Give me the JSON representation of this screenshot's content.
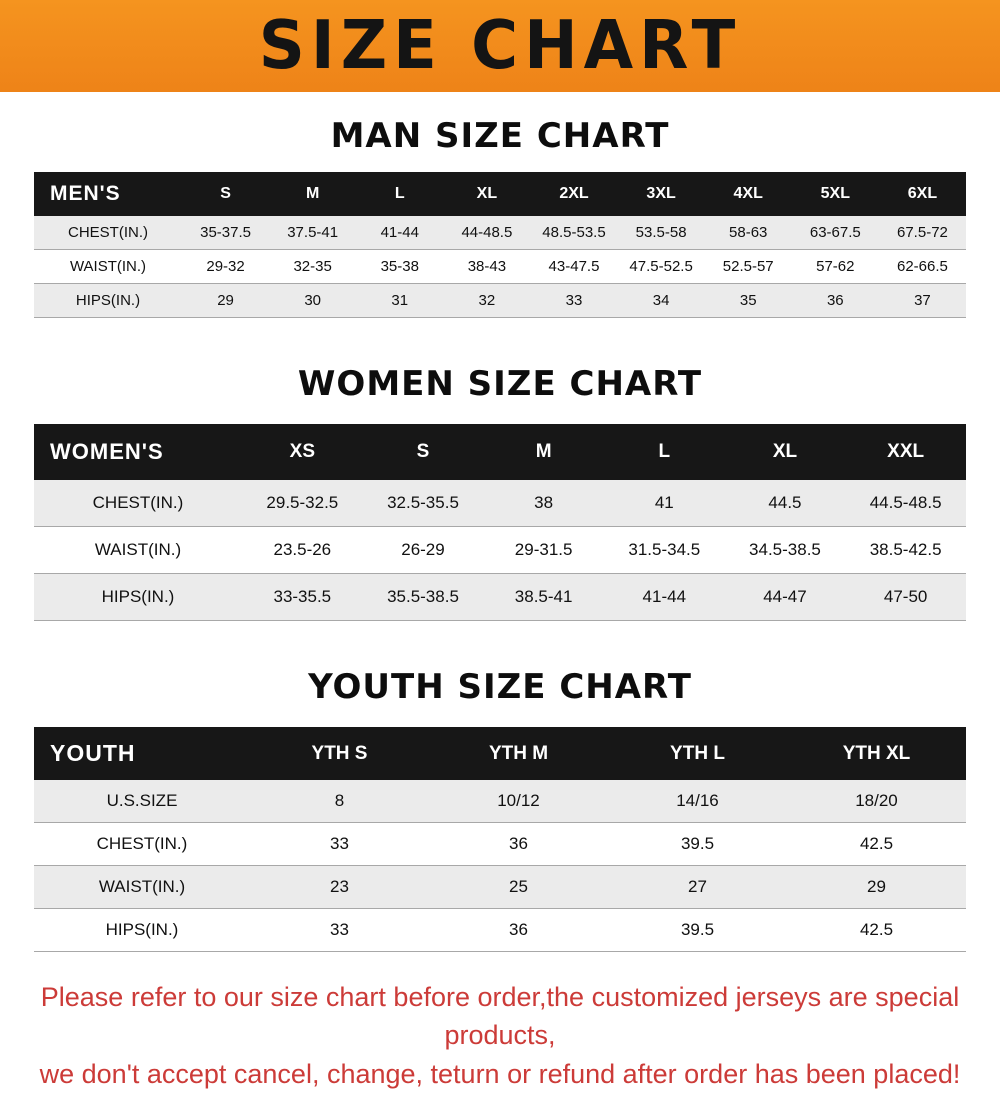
{
  "banner": {
    "title": "SIZE CHART",
    "bg_color_top": "#f5941f",
    "bg_color_bottom": "#ee8318",
    "text_color": "#141414"
  },
  "sections": [
    {
      "kind": "men",
      "heading": "MAN SIZE CHART",
      "table": {
        "header": [
          "MEN'S",
          "S",
          "M",
          "L",
          "XL",
          "2XL",
          "3XL",
          "4XL",
          "5XL",
          "6XL"
        ],
        "rows": [
          {
            "label": "CHEST(IN.)",
            "values": [
              "35-37.5",
              "37.5-41",
              "41-44",
              "44-48.5",
              "48.5-53.5",
              "53.5-58",
              "58-63",
              "63-67.5",
              "67.5-72"
            ]
          },
          {
            "label": "WAIST(IN.)",
            "values": [
              "29-32",
              "32-35",
              "35-38",
              "38-43",
              "43-47.5",
              "47.5-52.5",
              "52.5-57",
              "57-62",
              "62-66.5"
            ]
          },
          {
            "label": "HIPS(IN.)",
            "values": [
              "29",
              "30",
              "31",
              "32",
              "33",
              "34",
              "35",
              "36",
              "37"
            ]
          }
        ]
      }
    },
    {
      "kind": "women",
      "heading": "WOMEN SIZE CHART",
      "table": {
        "header": [
          "WOMEN'S",
          "XS",
          "S",
          "M",
          "L",
          "XL",
          "XXL"
        ],
        "rows": [
          {
            "label": "CHEST(IN.)",
            "values": [
              "29.5-32.5",
              "32.5-35.5",
              "38",
              "41",
              "44.5",
              "44.5-48.5"
            ]
          },
          {
            "label": "WAIST(IN.)",
            "values": [
              "23.5-26",
              "26-29",
              "29-31.5",
              "31.5-34.5",
              "34.5-38.5",
              "38.5-42.5"
            ]
          },
          {
            "label": "HIPS(IN.)",
            "values": [
              "33-35.5",
              "35.5-38.5",
              "38.5-41",
              "41-44",
              "44-47",
              "47-50"
            ]
          }
        ]
      }
    },
    {
      "kind": "youth",
      "heading": "YOUTH SIZE CHART",
      "table": {
        "header": [
          "YOUTH",
          "YTH S",
          "YTH M",
          "YTH L",
          "YTH XL"
        ],
        "rows": [
          {
            "label": "U.S.SIZE",
            "values": [
              "8",
              "10/12",
              "14/16",
              "18/20"
            ]
          },
          {
            "label": "CHEST(IN.)",
            "values": [
              "33",
              "36",
              "39.5",
              "42.5"
            ]
          },
          {
            "label": "WAIST(IN.)",
            "values": [
              "23",
              "25",
              "27",
              "29"
            ]
          },
          {
            "label": "HIPS(IN.)",
            "values": [
              "33",
              "36",
              "39.5",
              "42.5"
            ]
          }
        ]
      }
    }
  ],
  "footer": {
    "line1": "Please refer to our size chart before order,the customized jerseys are special products,",
    "line2": "we don't accept cancel, change, teturn or refund after order has been placed!",
    "text_color": "#cc3b38"
  }
}
